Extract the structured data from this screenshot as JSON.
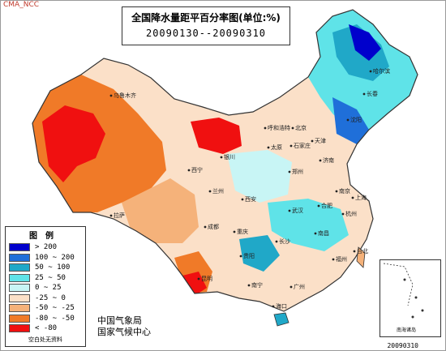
{
  "header": {
    "watermark": "CMA_NCC",
    "title": "全国降水量距平百分率图(单位:%)",
    "date_range": "20090130--20090310"
  },
  "legend": {
    "title": "图例",
    "items": [
      {
        "label": "> 200",
        "color": "#0000cc"
      },
      {
        "label": "100 ~ 200",
        "color": "#1f6fd9"
      },
      {
        "label": "50 ~ 100",
        "color": "#20a8c8"
      },
      {
        "label": "25 ~ 50",
        "color": "#5fe3e8"
      },
      {
        "label": "0 ~ 25",
        "color": "#c8f5f5"
      },
      {
        "label": "-25 ~ 0",
        "color": "#fbe0c8"
      },
      {
        "label": "-50 ~ -25",
        "color": "#f5b27a"
      },
      {
        "label": "-80 ~ -50",
        "color": "#f07a28"
      },
      {
        "label": "< -80",
        "color": "#f01010"
      }
    ],
    "note": "空白处无资料"
  },
  "footer": {
    "org_line1": "中国气象局",
    "org_line2": "国家气候中心",
    "inset_label": "南海诸岛",
    "stamp": "20090310"
  },
  "places": [
    {
      "name": "乌鲁木齐"
    },
    {
      "name": "拉萨"
    },
    {
      "name": "西宁"
    },
    {
      "name": "兰州"
    },
    {
      "name": "成都"
    },
    {
      "name": "重庆"
    },
    {
      "name": "昆明"
    },
    {
      "name": "贵阳"
    },
    {
      "name": "南宁"
    },
    {
      "name": "广州"
    },
    {
      "name": "海口"
    },
    {
      "name": "台北"
    },
    {
      "name": "福州"
    },
    {
      "name": "长沙"
    },
    {
      "name": "南昌"
    },
    {
      "name": "武汉"
    },
    {
      "name": "合肥"
    },
    {
      "name": "南京"
    },
    {
      "name": "上海"
    },
    {
      "name": "杭州"
    },
    {
      "name": "郑州"
    },
    {
      "name": "济南"
    },
    {
      "name": "石家庄"
    },
    {
      "name": "太原"
    },
    {
      "name": "银川"
    },
    {
      "name": "呼和浩特"
    },
    {
      "name": "北京"
    },
    {
      "name": "天津"
    },
    {
      "name": "沈阳"
    },
    {
      "name": "长春"
    },
    {
      "name": "哈尔滨"
    },
    {
      "name": "西安"
    }
  ]
}
